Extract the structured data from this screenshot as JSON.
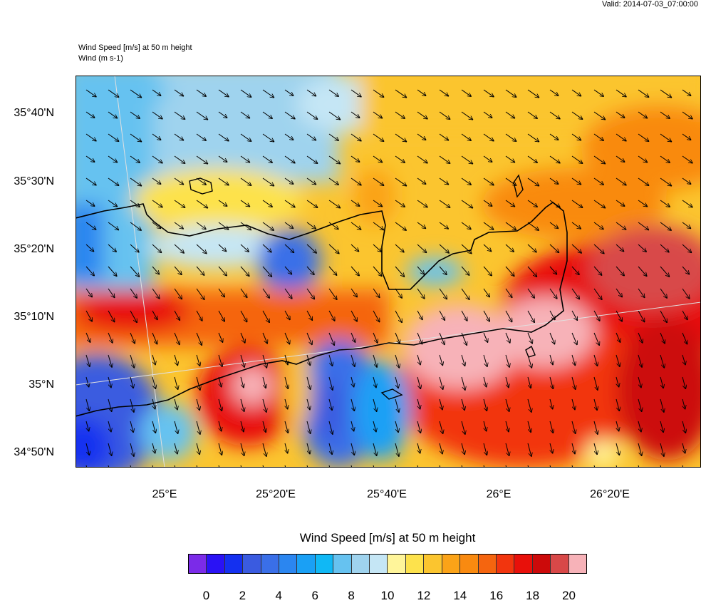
{
  "header": {
    "valid": "Valid: 2014-07-03_07:00:00",
    "field_title": "Wind Speed [m/s] at 50 m height",
    "vector_title": "Wind   (m s-1)"
  },
  "map": {
    "lat_labels": [
      "35°40'N",
      "35°30'N",
      "35°20'N",
      "35°10'N",
      "35°N",
      "34°50'N"
    ],
    "lon_labels": [
      "25°E",
      "25°20'E",
      "25°40'E",
      "26°E",
      "26°20'E"
    ]
  },
  "colorbar": {
    "title": "Wind Speed [m/s] at 50 m height",
    "colors": [
      "#7b2be8",
      "#2a12f5",
      "#1430f0",
      "#3a5be0",
      "#3a6fe8",
      "#2b86f0",
      "#1aa0f5",
      "#10b8f5",
      "#66c2f0",
      "#9fd3ee",
      "#c5e6f5",
      "#fff59a",
      "#fde24c",
      "#fbc52f",
      "#fba318",
      "#f98a10",
      "#f5650f",
      "#f2350e",
      "#e8100a",
      "#cc0a0a",
      "#d84848",
      "#f7b2b8"
    ],
    "labels": [
      "0",
      "2",
      "4",
      "6",
      "8",
      "10",
      "12",
      "14",
      "16",
      "18",
      "20"
    ]
  }
}
